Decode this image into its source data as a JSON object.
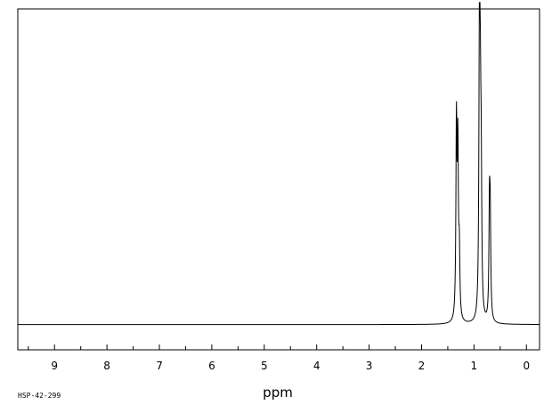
{
  "chart_data": {
    "type": "line",
    "title": "",
    "xlabel": "ppm",
    "ylabel": "",
    "xlim": [
      9.7,
      -0.25
    ],
    "ylim": [
      -0.08,
      1.0
    ],
    "grid": false,
    "legend": "none",
    "x_ticks": [
      9,
      8,
      7,
      6,
      5,
      4,
      3,
      2,
      1,
      0
    ],
    "x_tick_labels": [
      "9",
      "8",
      "7",
      "6",
      "5",
      "4",
      "3",
      "2",
      "1",
      "0"
    ],
    "peaks": [
      {
        "ppm": 1.335,
        "height": 0.61
      },
      {
        "ppm": 1.308,
        "height": 0.52
      },
      {
        "ppm": 1.28,
        "height": 0.2
      },
      {
        "ppm": 0.895,
        "height": 1.0
      },
      {
        "ppm": 0.878,
        "height": 0.46
      },
      {
        "ppm": 0.862,
        "height": 0.38
      },
      {
        "ppm": 0.705,
        "height": 0.34
      },
      {
        "ppm": 0.69,
        "height": 0.29
      }
    ],
    "line_color": "#000000"
  },
  "sample_id": "HSP-42-299"
}
